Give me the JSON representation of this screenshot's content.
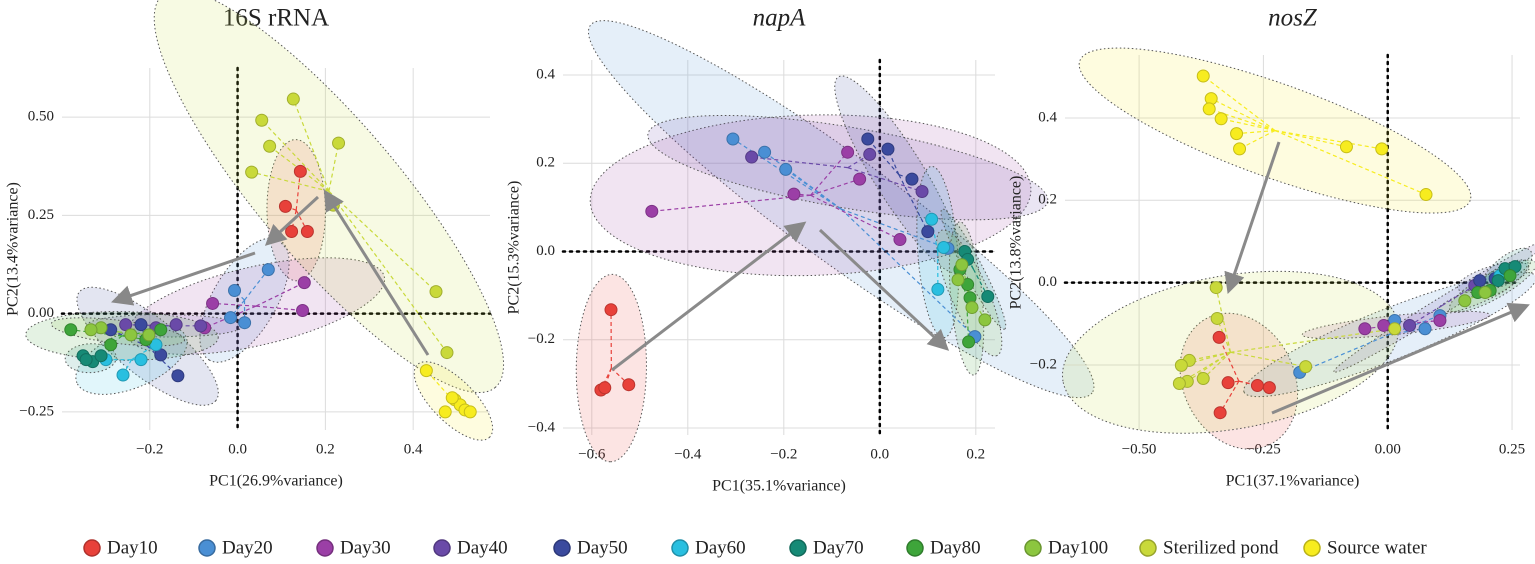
{
  "chart_data": [
    {
      "type": "scatter",
      "title": "16S rRNA",
      "title_italic": false,
      "x_label": "PC1(26.9%variance)",
      "y_label": "PC2(13.4%variance)",
      "xlim": [
        -0.4,
        0.575
      ],
      "ylim": [
        -0.296,
        0.625
      ],
      "xticks": [
        {
          "value": -0.2,
          "label": "−0.2"
        },
        {
          "value": 0,
          "label": "0.0"
        },
        0.2,
        0.4
      ],
      "yticks": [
        {
          "value": -0.25,
          "label": "−0.25"
        },
        {
          "value": 0,
          "label": "0.00"
        },
        0.25,
        {
          "value": 0.5,
          "label": "0.50"
        }
      ],
      "grid": true,
      "series": [
        {
          "name": "Day10",
          "color": "#e8413a",
          "x": [
            0.143,
            0.109,
            0.123,
            0.159
          ],
          "y": [
            0.362,
            0.273,
            0.209,
            0.209
          ]
        },
        {
          "name": "Day20",
          "color": "#4a8fd4",
          "x": [
            0.07,
            -0.007,
            0.016,
            -0.016
          ],
          "y": [
            0.112,
            0.059,
            -0.023,
            -0.01
          ]
        },
        {
          "name": "Day30",
          "color": "#9b3fa6",
          "x": [
            -0.057,
            0.152,
            0.148,
            -0.075
          ],
          "y": [
            0.026,
            0.079,
            0.008,
            -0.036
          ]
        },
        {
          "name": "Day40",
          "color": "#6a4aa8",
          "x": [
            -0.084,
            -0.186,
            -0.255,
            -0.14
          ],
          "y": [
            -0.031,
            -0.036,
            -0.028,
            -0.028
          ]
        },
        {
          "name": "Day50",
          "color": "#3b4a9e",
          "x": [
            -0.136,
            -0.289,
            -0.22,
            -0.175
          ],
          "y": [
            -0.158,
            -0.041,
            -0.028,
            -0.105
          ]
        },
        {
          "name": "Day60",
          "color": "#29bfe0",
          "x": [
            -0.261,
            -0.22,
            -0.186,
            -0.3
          ],
          "y": [
            -0.156,
            -0.117,
            -0.079,
            -0.117
          ]
        },
        {
          "name": "Day70",
          "color": "#168a76",
          "x": [
            -0.352,
            -0.33,
            -0.311,
            -0.345
          ],
          "y": [
            -0.107,
            -0.122,
            -0.107,
            -0.117
          ]
        },
        {
          "name": "Day80",
          "color": "#3ea53a",
          "x": [
            -0.38,
            -0.289,
            -0.209,
            -0.175
          ],
          "y": [
            -0.041,
            -0.079,
            -0.066,
            -0.041
          ]
        },
        {
          "name": "Day100",
          "color": "#8cc63f",
          "x": [
            -0.311,
            -0.334,
            -0.243,
            -0.202
          ],
          "y": [
            -0.036,
            -0.041,
            -0.054,
            -0.054
          ]
        },
        {
          "name": "Sterilized pond",
          "color": "#c9d93a",
          "x": [
            0.127,
            0.055,
            0.073,
            0.032,
            0.23,
            0.218,
            0.452,
            0.477
          ],
          "y": [
            0.546,
            0.492,
            0.426,
            0.36,
            0.434,
            0.276,
            0.056,
            -0.099
          ]
        },
        {
          "name": "Source water",
          "color": "#f7ec1f",
          "x": [
            0.43,
            0.495,
            0.507,
            0.518,
            0.473,
            0.489,
            0.53
          ],
          "y": [
            -0.145,
            -0.219,
            -0.232,
            -0.245,
            -0.25,
            -0.214,
            -0.25
          ]
        }
      ]
    },
    {
      "type": "scatter",
      "title": "napA",
      "title_italic": true,
      "x_label": "PC1(35.1%variance)",
      "y_label": "PC2(15.3%variance)",
      "xlim": [
        -0.66,
        0.24
      ],
      "ylim": [
        -0.416,
        0.434
      ],
      "xticks": [
        {
          "value": -0.6,
          "label": "−0.6"
        },
        {
          "value": -0.4,
          "label": "−0.4"
        },
        {
          "value": -0.2,
          "label": "−0.2"
        },
        {
          "value": 0,
          "label": "0.0"
        },
        0.2
      ],
      "yticks": [
        {
          "value": -0.4,
          "label": "−0.4"
        },
        {
          "value": -0.2,
          "label": "−0.2"
        },
        {
          "value": 0,
          "label": "0.0"
        },
        0.2,
        0.4
      ],
      "grid": true,
      "series": [
        {
          "name": "Day10",
          "color": "#e8413a",
          "x": [
            -0.56,
            -0.581,
            -0.523,
            -0.573
          ],
          "y": [
            -0.132,
            -0.314,
            -0.302,
            -0.309
          ]
        },
        {
          "name": "Day20",
          "color": "#4a8fd4",
          "x": [
            -0.306,
            -0.24,
            -0.196,
            0.142,
            0.198
          ],
          "y": [
            0.255,
            0.225,
            0.186,
            0.007,
            -0.193
          ]
        },
        {
          "name": "Day30",
          "color": "#9b3fa6",
          "x": [
            -0.475,
            -0.179,
            -0.042,
            -0.067,
            0.042
          ],
          "y": [
            0.091,
            0.13,
            0.164,
            0.225,
            0.027
          ]
        },
        {
          "name": "Day40",
          "color": "#6a4aa8",
          "x": [
            -0.267,
            -0.021,
            0.088
          ],
          "y": [
            0.214,
            0.22,
            0.136
          ]
        },
        {
          "name": "Day50",
          "color": "#3b4a9e",
          "x": [
            -0.025,
            0.017,
            0.067,
            0.1
          ],
          "y": [
            0.255,
            0.232,
            0.164,
            0.045
          ]
        },
        {
          "name": "Day60",
          "color": "#29bfe0",
          "x": [
            0.108,
            0.133,
            0.121
          ],
          "y": [
            0.073,
            0.009,
            -0.086
          ]
        },
        {
          "name": "Day70",
          "color": "#168a76",
          "x": [
            0.177,
            0.225,
            0.183
          ],
          "y": [
            0,
            -0.102,
            -0.018
          ]
        },
        {
          "name": "Day80",
          "color": "#3ea53a",
          "x": [
            0.167,
            0.183,
            0.188,
            0.185
          ],
          "y": [
            -0.041,
            -0.075,
            -0.105,
            -0.205
          ]
        },
        {
          "name": "Day100",
          "color": "#8cc63f",
          "x": [
            0.163,
            0.192,
            0.219,
            0.171
          ],
          "y": [
            -0.064,
            -0.127,
            -0.155,
            -0.03
          ]
        }
      ]
    },
    {
      "type": "scatter",
      "title": "nosZ",
      "title_italic": true,
      "x_label": "PC1(37.1%variance)",
      "y_label": "PC2(13.8%variance)",
      "xlim": [
        -0.649,
        0.266
      ],
      "ylim": [
        -0.358,
        0.553
      ],
      "xticks": [
        {
          "value": -0.5,
          "label": "−0.50"
        },
        {
          "value": -0.25,
          "label": "−0.25"
        },
        {
          "value": 0,
          "label": "0.00"
        },
        0.25
      ],
      "yticks": [
        {
          "value": -0.2,
          "label": "−0.2"
        },
        {
          "value": 0,
          "label": "0.0"
        },
        0.2,
        0.4
      ],
      "grid": true,
      "series": [
        {
          "name": "Day10",
          "color": "#e8413a",
          "x": [
            -0.339,
            -0.321,
            -0.262,
            -0.337,
            -0.238
          ],
          "y": [
            -0.133,
            -0.243,
            -0.25,
            -0.316,
            -0.255
          ]
        },
        {
          "name": "Day20",
          "color": "#4a8fd4",
          "x": [
            -0.177,
            0.014,
            0.075,
            0.105
          ],
          "y": [
            -0.218,
            -0.092,
            -0.112,
            -0.08
          ]
        },
        {
          "name": "Day30",
          "color": "#9b3fa6",
          "x": [
            -0.046,
            -0.008,
            0.105
          ],
          "y": [
            -0.112,
            -0.104,
            -0.092
          ]
        },
        {
          "name": "Day40",
          "color": "#6a4aa8",
          "x": [
            0.044,
            0.175
          ],
          "y": [
            -0.104,
            -0.007
          ]
        },
        {
          "name": "Day50",
          "color": "#3b4a9e",
          "x": [
            0.185,
            0.216,
            0.236
          ],
          "y": [
            0.005,
            0.01,
            0.024
          ]
        },
        {
          "name": "Day60",
          "color": "#29bfe0",
          "x": [
            0.226,
            0.246
          ],
          "y": [
            0.017,
            0.029
          ]
        },
        {
          "name": "Day70",
          "color": "#168a76",
          "x": [
            0.236,
            0.256,
            0.222
          ],
          "y": [
            0.034,
            0.039,
            0.005
          ]
        },
        {
          "name": "Day80",
          "color": "#3ea53a",
          "x": [
            0.206,
            0.181,
            0.246
          ],
          "y": [
            -0.019,
            -0.024,
            0.017
          ]
        },
        {
          "name": "Day100",
          "color": "#8cc63f",
          "x": [
            0.155,
            0.196
          ],
          "y": [
            -0.044,
            -0.024
          ]
        },
        {
          "name": "Sterilized pond",
          "color": "#c9d93a",
          "x": [
            -0.345,
            -0.343,
            -0.399,
            -0.415,
            -0.403,
            -0.419,
            -0.371,
            -0.165,
            0.014
          ],
          "y": [
            -0.012,
            -0.087,
            -0.189,
            -0.201,
            -0.24,
            -0.245,
            -0.233,
            -0.204,
            -0.112
          ]
        },
        {
          "name": "Source water",
          "color": "#f7ec1f",
          "x": [
            -0.371,
            -0.355,
            -0.359,
            -0.335,
            -0.304,
            -0.298,
            -0.083,
            -0.012,
            0.077
          ],
          "y": [
            0.502,
            0.447,
            0.422,
            0.398,
            0.362,
            0.325,
            0.33,
            0.325,
            0.214
          ]
        }
      ]
    }
  ]
}
